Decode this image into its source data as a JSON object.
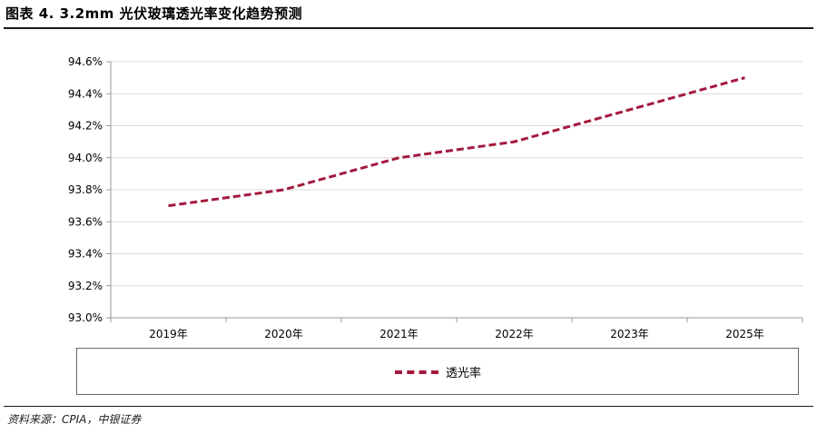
{
  "title": "图表 4. 3.2mm 光伏玻璃透光率变化趋势预测",
  "source": "资料来源：CPIA，中银证券",
  "colors": {
    "line": "#a4193d",
    "grid": "#d9d9d9",
    "axis": "#999999"
  },
  "chart_data": {
    "type": "line",
    "title": "",
    "xlabel": "",
    "ylabel": "",
    "categories": [
      "2019年",
      "2020年",
      "2021年",
      "2022年",
      "2023年",
      "2025年"
    ],
    "series": [
      {
        "name": "透光率",
        "values": [
          93.7,
          93.8,
          94.0,
          94.1,
          94.3,
          94.5
        ],
        "style": "dashed"
      }
    ],
    "ylim": [
      93.0,
      94.6
    ],
    "yticks": [
      "93.0%",
      "93.2%",
      "93.4%",
      "93.6%",
      "93.8%",
      "94.0%",
      "94.2%",
      "94.4%",
      "94.6%"
    ],
    "grid": true,
    "legend": "bottom"
  }
}
